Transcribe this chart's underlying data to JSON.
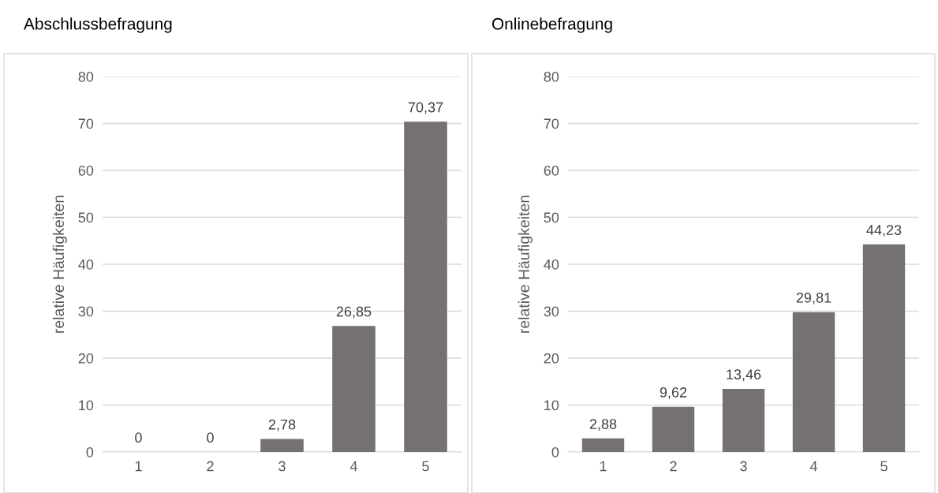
{
  "chart_data": [
    {
      "type": "bar",
      "title": "Abschlussbefragung",
      "ylabel": "relative Häufigkeiten",
      "categories": [
        "1",
        "2",
        "3",
        "4",
        "5"
      ],
      "values": [
        0,
        0,
        2.78,
        26.85,
        70.37
      ],
      "value_labels": [
        "0",
        "0",
        "2,78",
        "26,85",
        "70,37"
      ],
      "color": "#767171",
      "ylim": [
        0,
        80
      ],
      "yticks": [
        0,
        10,
        20,
        30,
        40,
        50,
        60,
        70,
        80
      ],
      "grid": "y",
      "legend": false
    },
    {
      "type": "bar",
      "title": "Onlinebefragung",
      "ylabel": "relative Häufigkeiten",
      "categories": [
        "1",
        "2",
        "3",
        "4",
        "5"
      ],
      "values": [
        2.88,
        9.62,
        13.46,
        29.81,
        44.23
      ],
      "value_labels": [
        "2,88",
        "9,62",
        "13,46",
        "29,81",
        "44,23"
      ],
      "color": "#767171",
      "ylim": [
        0,
        80
      ],
      "yticks": [
        0,
        10,
        20,
        30,
        40,
        50,
        60,
        70,
        80
      ],
      "grid": "y",
      "legend": false
    }
  ]
}
